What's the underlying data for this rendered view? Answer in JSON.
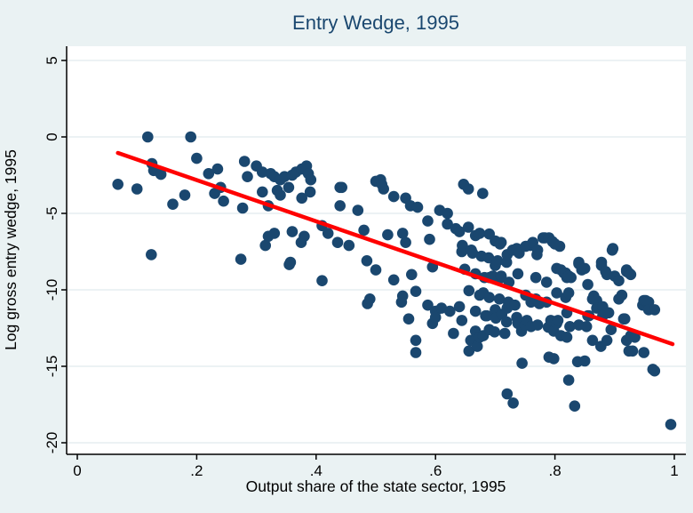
{
  "figure": {
    "title": "Entry Wedge, 1995",
    "xlabel": "Output share of the state sector, 1995",
    "ylabel": "Log gross entry wedge, 1995"
  },
  "colors": {
    "canvas": "#eaf2f3",
    "plot_background": "#ffffff",
    "gridline": "#e0ebed",
    "axis": "#000000",
    "title": "#1a476f",
    "marker": "#1a476f",
    "fit_line": "#ff0000"
  },
  "chart_data": {
    "type": "scatter",
    "title": "Entry Wedge, 1995",
    "xlabel": "Output share of the state sector, 1995",
    "ylabel": "Log gross entry wedge, 1995",
    "xlim": [
      -0.018,
      1.02
    ],
    "ylim": [
      -20.8,
      5.95
    ],
    "grid": true,
    "x_ticks": [
      {
        "v": 0.0,
        "label": "0"
      },
      {
        "v": 0.2,
        "label": ".2"
      },
      {
        "v": 0.4,
        "label": ".4"
      },
      {
        "v": 0.6,
        "label": ".6"
      },
      {
        "v": 0.8,
        "label": ".8"
      },
      {
        "v": 1.0,
        "label": "1"
      }
    ],
    "y_ticks": [
      {
        "v": 5,
        "label": "5"
      },
      {
        "v": 0,
        "label": "0"
      },
      {
        "v": -5,
        "label": "-5"
      },
      {
        "v": -10,
        "label": "-10"
      },
      {
        "v": -15,
        "label": "-15"
      },
      {
        "v": -20,
        "label": "-20"
      }
    ],
    "series": [
      {
        "name": "scatter-points",
        "type": "scatter",
        "color": "#1a476f",
        "marker_radius": 6.3,
        "points": [
          [
            0.068,
            -3.1
          ],
          [
            0.1,
            -3.4
          ],
          [
            0.118,
            0.0
          ],
          [
            0.125,
            -1.75
          ],
          [
            0.128,
            -2.2
          ],
          [
            0.14,
            -2.45
          ],
          [
            0.124,
            -7.7
          ],
          [
            0.16,
            -4.4
          ],
          [
            0.18,
            -3.8
          ],
          [
            0.19,
            0.0
          ],
          [
            0.2,
            -1.4
          ],
          [
            0.22,
            -2.4
          ],
          [
            0.235,
            -2.1
          ],
          [
            0.23,
            -3.7
          ],
          [
            0.24,
            -3.3
          ],
          [
            0.245,
            -4.2
          ],
          [
            0.277,
            -4.65
          ],
          [
            0.274,
            -8.0
          ],
          [
            0.28,
            -1.6
          ],
          [
            0.285,
            -2.6
          ],
          [
            0.3,
            -1.9
          ],
          [
            0.31,
            -2.3
          ],
          [
            0.31,
            -3.6
          ],
          [
            0.315,
            -7.1
          ],
          [
            0.32,
            -4.5
          ],
          [
            0.32,
            -6.5
          ],
          [
            0.324,
            -2.4
          ],
          [
            0.33,
            -2.6
          ],
          [
            0.33,
            -6.3
          ],
          [
            0.335,
            -3.5
          ],
          [
            0.34,
            -2.8
          ],
          [
            0.34,
            -3.8
          ],
          [
            0.347,
            -2.6
          ],
          [
            0.354,
            -3.3
          ],
          [
            0.355,
            -8.35
          ],
          [
            0.357,
            -8.2
          ],
          [
            0.36,
            -2.5
          ],
          [
            0.36,
            -6.2
          ],
          [
            0.366,
            -2.3
          ],
          [
            0.375,
            -6.9
          ],
          [
            0.376,
            -2.1
          ],
          [
            0.376,
            -4.0
          ],
          [
            0.38,
            -6.5
          ],
          [
            0.384,
            -1.9
          ],
          [
            0.387,
            -2.4
          ],
          [
            0.39,
            -3.6
          ],
          [
            0.391,
            -2.8
          ],
          [
            0.41,
            -5.8
          ],
          [
            0.41,
            -9.4
          ],
          [
            0.42,
            -6.3
          ],
          [
            0.436,
            -6.9
          ],
          [
            0.44,
            -3.3
          ],
          [
            0.44,
            -4.5
          ],
          [
            0.443,
            -3.3
          ],
          [
            0.455,
            -7.1
          ],
          [
            0.47,
            -4.8
          ],
          [
            0.48,
            -6.1
          ],
          [
            0.485,
            -8.1
          ],
          [
            0.486,
            -10.9
          ],
          [
            0.49,
            -10.6
          ],
          [
            0.5,
            -2.9
          ],
          [
            0.5,
            -8.7
          ],
          [
            0.508,
            -2.8
          ],
          [
            0.51,
            -3.1
          ],
          [
            0.513,
            -3.4
          ],
          [
            0.52,
            -6.4
          ],
          [
            0.53,
            -3.9
          ],
          [
            0.53,
            -9.35
          ],
          [
            0.543,
            -10.8
          ],
          [
            0.545,
            -6.3
          ],
          [
            0.545,
            -10.4
          ],
          [
            0.55,
            -4.0
          ],
          [
            0.55,
            -6.9
          ],
          [
            0.555,
            -11.9
          ],
          [
            0.558,
            -4.5
          ],
          [
            0.56,
            -9.0
          ],
          [
            0.567,
            -10.1
          ],
          [
            0.567,
            -13.3
          ],
          [
            0.567,
            -14.1
          ],
          [
            0.57,
            -4.6
          ],
          [
            0.587,
            -5.5
          ],
          [
            0.587,
            -11.0
          ],
          [
            0.59,
            -6.7
          ],
          [
            0.595,
            -8.5
          ],
          [
            0.595,
            -12.2
          ],
          [
            0.6,
            -11.4
          ],
          [
            0.6,
            -11.8
          ],
          [
            0.607,
            -4.8
          ],
          [
            0.61,
            -11.2
          ],
          [
            0.62,
            -5.0
          ],
          [
            0.62,
            -5.7
          ],
          [
            0.624,
            -11.4
          ],
          [
            0.63,
            -12.85
          ],
          [
            0.634,
            -6.0
          ],
          [
            0.64,
            -6.2
          ],
          [
            0.64,
            -11.1
          ],
          [
            0.644,
            -7.5
          ],
          [
            0.644,
            -12.0
          ],
          [
            0.645,
            -7.1
          ],
          [
            0.647,
            -3.1
          ],
          [
            0.649,
            -8.65
          ],
          [
            0.655,
            -3.4
          ],
          [
            0.655,
            -5.9
          ],
          [
            0.656,
            -10.05
          ],
          [
            0.656,
            -14.0
          ],
          [
            0.659,
            -13.3
          ],
          [
            0.66,
            -7.4
          ],
          [
            0.662,
            -7.6
          ],
          [
            0.667,
            -6.45
          ],
          [
            0.667,
            -8.95
          ],
          [
            0.667,
            -11.4
          ],
          [
            0.667,
            -12.7
          ],
          [
            0.67,
            -13.7
          ],
          [
            0.674,
            -6.3
          ],
          [
            0.674,
            -10.35
          ],
          [
            0.674,
            -13.1
          ],
          [
            0.677,
            -7.8
          ],
          [
            0.679,
            -3.7
          ],
          [
            0.68,
            -10.2
          ],
          [
            0.68,
            -13.0
          ],
          [
            0.682,
            -9.2
          ],
          [
            0.684,
            -11.7
          ],
          [
            0.686,
            -11.7
          ],
          [
            0.689,
            -7.9
          ],
          [
            0.69,
            -6.35
          ],
          [
            0.69,
            -9.2
          ],
          [
            0.69,
            -10.5
          ],
          [
            0.69,
            -12.6
          ],
          [
            0.696,
            -9.1
          ],
          [
            0.699,
            -12.75
          ],
          [
            0.7,
            -6.8
          ],
          [
            0.7,
            -8.4
          ],
          [
            0.7,
            -11.3
          ],
          [
            0.701,
            -11.85
          ],
          [
            0.704,
            -8.1
          ],
          [
            0.707,
            -10.6
          ],
          [
            0.708,
            -7.0
          ],
          [
            0.708,
            -9.25
          ],
          [
            0.71,
            -6.9
          ],
          [
            0.71,
            -9.1
          ],
          [
            0.711,
            -11.6
          ],
          [
            0.716,
            -12.85
          ],
          [
            0.719,
            -8.2
          ],
          [
            0.719,
            -12.1
          ],
          [
            0.72,
            -7.7
          ],
          [
            0.72,
            -11.2
          ],
          [
            0.72,
            -16.8
          ],
          [
            0.722,
            -10.8
          ],
          [
            0.723,
            -9.5
          ],
          [
            0.729,
            -7.4
          ],
          [
            0.73,
            -17.4
          ],
          [
            0.733,
            -11.0
          ],
          [
            0.736,
            -7.3
          ],
          [
            0.736,
            -11.8
          ],
          [
            0.738,
            -8.95
          ],
          [
            0.738,
            -12.2
          ],
          [
            0.74,
            -7.6
          ],
          [
            0.744,
            -12.7
          ],
          [
            0.745,
            -14.8
          ],
          [
            0.75,
            -12.3
          ],
          [
            0.751,
            -7.15
          ],
          [
            0.751,
            -10.35
          ],
          [
            0.753,
            -12.0
          ],
          [
            0.759,
            -7.1
          ],
          [
            0.76,
            -10.8
          ],
          [
            0.76,
            -12.4
          ],
          [
            0.763,
            -6.9
          ],
          [
            0.768,
            -9.2
          ],
          [
            0.768,
            -10.6
          ],
          [
            0.77,
            -7.7
          ],
          [
            0.771,
            -7.4
          ],
          [
            0.771,
            -12.3
          ],
          [
            0.774,
            -10.9
          ],
          [
            0.78,
            -6.6
          ],
          [
            0.783,
            -6.6
          ],
          [
            0.786,
            -9.5
          ],
          [
            0.786,
            -10.8
          ],
          [
            0.789,
            -12.45
          ],
          [
            0.79,
            -6.6
          ],
          [
            0.79,
            -14.4
          ],
          [
            0.793,
            -12.0
          ],
          [
            0.796,
            -6.85
          ],
          [
            0.798,
            -12.7
          ],
          [
            0.798,
            -14.5
          ],
          [
            0.8,
            -7.0
          ],
          [
            0.803,
            -8.6
          ],
          [
            0.803,
            -10.2
          ],
          [
            0.803,
            -12.2
          ],
          [
            0.805,
            -12.0
          ],
          [
            0.808,
            -7.15
          ],
          [
            0.81,
            -8.7
          ],
          [
            0.81,
            -13.0
          ],
          [
            0.815,
            -8.9
          ],
          [
            0.818,
            -8.9
          ],
          [
            0.818,
            -10.5
          ],
          [
            0.82,
            -9.2
          ],
          [
            0.82,
            -11.5
          ],
          [
            0.82,
            -13.1
          ],
          [
            0.823,
            -9.1
          ],
          [
            0.823,
            -10.2
          ],
          [
            0.823,
            -15.9
          ],
          [
            0.825,
            -12.4
          ],
          [
            0.827,
            -9.2
          ],
          [
            0.833,
            -17.6
          ],
          [
            0.838,
            -14.7
          ],
          [
            0.84,
            -8.2
          ],
          [
            0.84,
            -8.3
          ],
          [
            0.84,
            -12.3
          ],
          [
            0.845,
            -8.7
          ],
          [
            0.85,
            -8.6
          ],
          [
            0.85,
            -14.65
          ],
          [
            0.853,
            -12.4
          ],
          [
            0.855,
            -9.65
          ],
          [
            0.855,
            -11.7
          ],
          [
            0.857,
            -11.7
          ],
          [
            0.863,
            -10.6
          ],
          [
            0.863,
            -13.3
          ],
          [
            0.865,
            -10.4
          ],
          [
            0.87,
            -10.7
          ],
          [
            0.87,
            -11.2
          ],
          [
            0.877,
            -13.7
          ],
          [
            0.878,
            -8.2
          ],
          [
            0.878,
            -8.4
          ],
          [
            0.88,
            -11.1
          ],
          [
            0.88,
            -11.7
          ],
          [
            0.885,
            -8.8
          ],
          [
            0.887,
            -9.0
          ],
          [
            0.887,
            -13.3
          ],
          [
            0.89,
            -11.5
          ],
          [
            0.894,
            -12.6
          ],
          [
            0.896,
            -7.4
          ],
          [
            0.897,
            -7.3
          ],
          [
            0.9,
            -9.1
          ],
          [
            0.907,
            -9.4
          ],
          [
            0.907,
            -10.6
          ],
          [
            0.912,
            -10.35
          ],
          [
            0.915,
            -11.9
          ],
          [
            0.917,
            -11.9
          ],
          [
            0.92,
            -8.7
          ],
          [
            0.92,
            -8.8
          ],
          [
            0.92,
            -13.3
          ],
          [
            0.924,
            -8.9
          ],
          [
            0.924,
            -14.0
          ],
          [
            0.927,
            -9.0
          ],
          [
            0.927,
            -13.0
          ],
          [
            0.93,
            -14.0
          ],
          [
            0.934,
            -13.1
          ],
          [
            0.947,
            -11.0
          ],
          [
            0.949,
            -10.7
          ],
          [
            0.949,
            -14.1
          ],
          [
            0.952,
            -10.7
          ],
          [
            0.957,
            -10.8
          ],
          [
            0.957,
            -11.3
          ],
          [
            0.964,
            -15.2
          ],
          [
            0.967,
            -11.3
          ],
          [
            0.967,
            -15.3
          ],
          [
            0.994,
            -18.8
          ]
        ]
      },
      {
        "name": "fit-line",
        "type": "line",
        "color": "#ff0000",
        "width": 4.5,
        "points": [
          [
            0.068,
            -1.05
          ],
          [
            0.997,
            -13.55
          ]
        ]
      }
    ],
    "legend": "none"
  }
}
